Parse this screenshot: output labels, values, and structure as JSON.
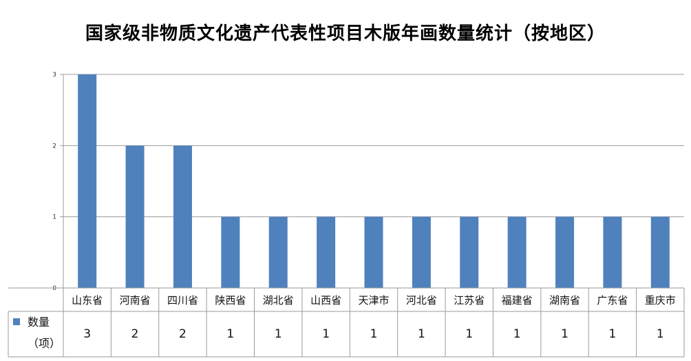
{
  "chart_data": {
    "type": "bar",
    "title": "国家级非物质文化遗产代表性项目木版年画数量统计（按地区）",
    "categories": [
      "山东省",
      "河南省",
      "四川省",
      "陕西省",
      "湖北省",
      "山西省",
      "天津市",
      "河北省",
      "江苏省",
      "福建省",
      "湖南省",
      "广东省",
      "重庆市"
    ],
    "series": [
      {
        "name": "数量",
        "unit_label": "（项）",
        "color": "#4f81bd",
        "values": [
          3,
          2,
          2,
          1,
          1,
          1,
          1,
          1,
          1,
          1,
          1,
          1,
          1
        ]
      }
    ],
    "yticks": [
      0,
      1,
      2,
      3
    ],
    "ylim": [
      0,
      3
    ],
    "grid": true,
    "data_table": true
  }
}
